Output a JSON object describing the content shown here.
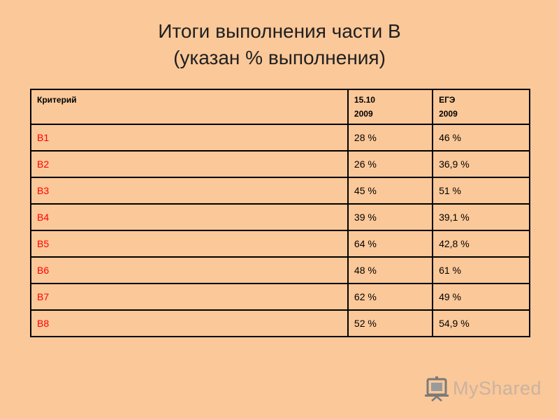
{
  "title": {
    "line1": "Итоги выполнения части В",
    "line2": "(указан % выполнения)"
  },
  "table": {
    "headers": {
      "criterion": "Критерий",
      "col_a_line1": "15.10",
      "col_a_line2": "2009",
      "col_b_line1": "ЕГЭ",
      "col_b_line2": "2009"
    },
    "rows": [
      {
        "criterion": "В1",
        "a": "28 %",
        "b": "46 %"
      },
      {
        "criterion": "В2",
        "a": "26 %",
        "b": "36,9 %"
      },
      {
        "criterion": "В3",
        "a": "45 %",
        "b": "51 %"
      },
      {
        "criterion": "В4",
        "a": "39 %",
        "b": "39,1 %"
      },
      {
        "criterion": "В5",
        "a": "64 %",
        "b": "42,8 %"
      },
      {
        "criterion": "В6",
        "a": "48 %",
        "b": "61 %"
      },
      {
        "criterion": "В7",
        "a": "62 %",
        "b": "49 %"
      },
      {
        "criterion": "В8",
        "a": "52 %",
        "b": "54,9 %"
      }
    ]
  },
  "colors": {
    "background": "#fbc899",
    "criterion_text": "#ff0000",
    "border": "#000000"
  },
  "logo": {
    "text": "MyShared",
    "icon": "presentation-board-icon"
  }
}
